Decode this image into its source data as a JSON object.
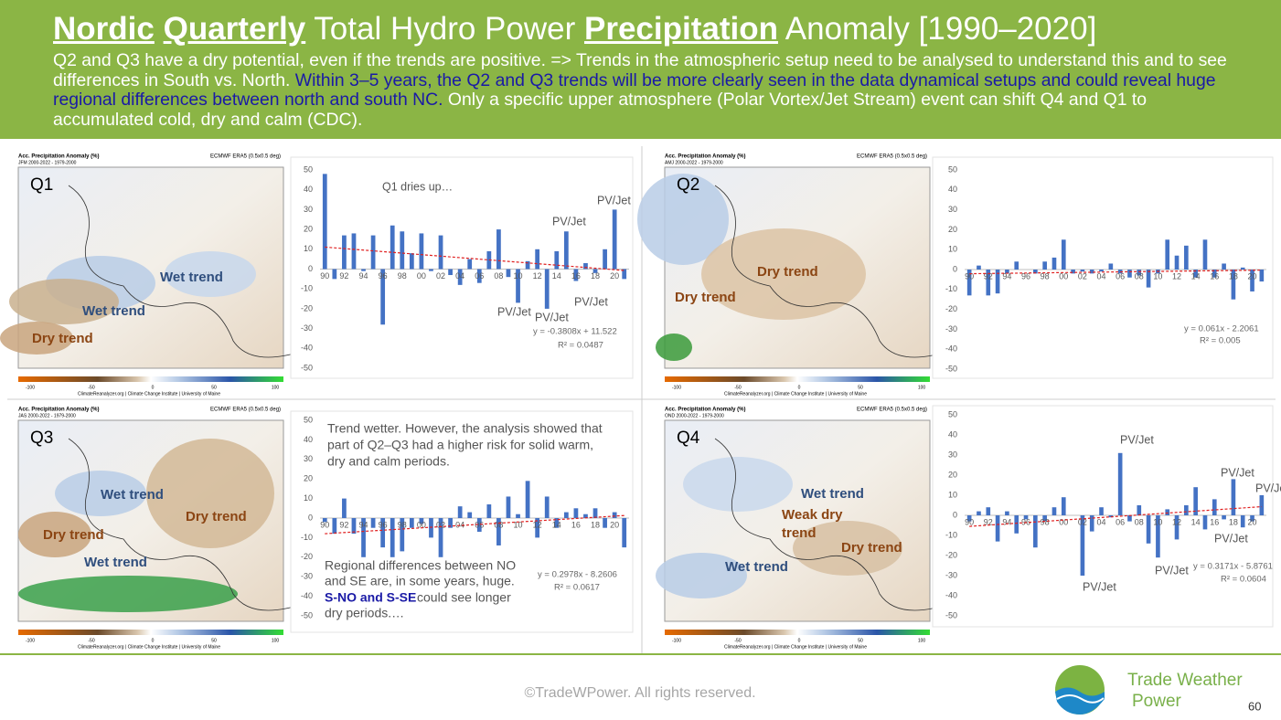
{
  "header": {
    "title_parts": [
      {
        "text": "Nordic",
        "underline": true
      },
      {
        "text": " ",
        "underline": false
      },
      {
        "text": "Quarterly",
        "underline": true
      },
      {
        "text": " Total Hydro Power ",
        "underline": false
      },
      {
        "text": "Precipitation",
        "underline": true
      },
      {
        "text": " Anomaly [1990–2020]",
        "underline": false
      }
    ],
    "subtitle_parts": [
      {
        "text": "Q2 and Q3 have a dry potential, even if the trends are positive. => Trends in the atmospheric setup need to be analysed to understand this and to see differences in South vs. North. ",
        "color": "#ffffff"
      },
      {
        "text": "Within 3–5 years, the Q2 and Q3 trends will be more clearly seen in the data dynamical setups and could reveal huge regional differences between north and south NC.",
        "color": "#1a1aa6"
      },
      {
        "text": "  Only a specific upper atmosphere (Polar Vortex/Jet Stream) event can shift Q4 and Q1 to accumulated cold, dry and calm (CDC).",
        "color": "#ffffff"
      }
    ]
  },
  "maps": {
    "title": "Acc. Precipitation Anomaly (%)",
    "model": "ECMWF ERA5 (0.5x0.5 deg)",
    "source": "ClimateReanalyzer.org | Climate Change Institute | University of Maine",
    "colorbar_ticks": [
      "-100",
      "-50",
      "0",
      "50",
      "100"
    ],
    "panels": [
      {
        "period": "JFM 2000-2022 - 1979-2000",
        "quarter": "Q1",
        "labels": [
          {
            "text": "Wet trend",
            "color": "#2f4e7d"
          },
          {
            "text": "Wet trend",
            "color": "#2f4e7d"
          },
          {
            "text": "Dry trend",
            "color": "#8b4513"
          }
        ]
      },
      {
        "period": "AMJ 2000-2022 - 1979-2000",
        "quarter": "Q2",
        "labels": [
          {
            "text": "Dry trend",
            "color": "#8b4513"
          },
          {
            "text": "Dry trend",
            "color": "#8b4513"
          }
        ]
      },
      {
        "period": "JAS 2000-2022 - 1979-2000",
        "quarter": "Q3",
        "labels": [
          {
            "text": "Wet trend",
            "color": "#2f4e7d"
          },
          {
            "text": "Dry trend",
            "color": "#8b4513"
          },
          {
            "text": "Dry trend",
            "color": "#8b4513"
          },
          {
            "text": "Wet trend",
            "color": "#2f4e7d"
          }
        ]
      },
      {
        "period": "OND 2000-2022 - 1979-2000",
        "quarter": "Q4",
        "labels": [
          {
            "text": "Wet trend",
            "color": "#2f4e7d"
          },
          {
            "text": "Weak dry",
            "color": "#8b4513"
          },
          {
            "text": "trend",
            "color": "#8b4513"
          },
          {
            "text": "Dry trend",
            "color": "#8b4513"
          },
          {
            "text": "Wet trend",
            "color": "#2f4e7d"
          }
        ]
      }
    ]
  },
  "chart_data": [
    {
      "type": "bar",
      "color": "#4472c4",
      "trend_color": "#e02020",
      "categories": [
        "90",
        null,
        "92",
        null,
        "94",
        null,
        "96",
        null,
        "98",
        null,
        "00",
        null,
        "02",
        null,
        "04",
        null,
        "06",
        null,
        "08",
        null,
        "10",
        null,
        "12",
        null,
        "14",
        null,
        "16",
        null,
        "18",
        null,
        "20",
        null
      ],
      "values": [
        48,
        -5,
        17,
        18,
        -1,
        17,
        -28,
        22,
        19,
        8,
        18,
        -1,
        17,
        -3,
        -8,
        5,
        -7,
        9,
        20,
        -4,
        -17,
        4,
        10,
        -20,
        9,
        19,
        -6,
        3,
        -2,
        10,
        30,
        -5
      ],
      "trend": [
        11.1,
        -0.7
      ],
      "ylim": [
        -50,
        50
      ],
      "yticks": [
        -50,
        -40,
        -30,
        -20,
        -10,
        0,
        10,
        20,
        30,
        40,
        50
      ],
      "annotations": [
        "Q1 dries up…",
        "PV/Jet",
        "PV/Jet",
        "PV/Jet",
        "PV/Jet",
        "PV/Jet",
        "y = -0.3808x + 11.522",
        "R² = 0.0487"
      ]
    },
    {
      "type": "bar",
      "color": "#4472c4",
      "trend_color": "#e02020",
      "categories": [
        "90",
        null,
        "92",
        null,
        "94",
        null,
        "96",
        null,
        "98",
        null,
        "00",
        null,
        "02",
        null,
        "04",
        null,
        "06",
        null,
        "08",
        null,
        "10",
        null,
        "12",
        null,
        "14",
        null,
        "16",
        null,
        "18",
        null,
        "20",
        null
      ],
      "values": [
        -13,
        2,
        -13,
        -12,
        -2,
        4,
        0,
        -2,
        4,
        6,
        15,
        -2,
        -1,
        -2,
        -1,
        3,
        -2,
        -4,
        -3,
        -9,
        -2,
        15,
        7,
        12,
        -4,
        15,
        -4,
        3,
        -15,
        1,
        -11,
        -6
      ],
      "trend": [
        -2.1,
        -0.3
      ],
      "ylim": [
        -50,
        50
      ],
      "yticks": [
        -50,
        -40,
        -30,
        -20,
        -10,
        0,
        10,
        20,
        30,
        40,
        50
      ],
      "annotations": [
        "y = 0.061x - 2.2061",
        "R² = 0.005"
      ]
    },
    {
      "type": "bar",
      "color": "#4472c4",
      "trend_color": "#e02020",
      "categories": [
        "90",
        null,
        "92",
        null,
        "94",
        null,
        "96",
        null,
        "98",
        null,
        "00",
        null,
        "02",
        null,
        "04",
        null,
        "06",
        null,
        "08",
        null,
        "10",
        null,
        "12",
        null,
        "14",
        null,
        "16",
        null,
        "18",
        null,
        "20",
        null
      ],
      "values": [
        -2,
        -8,
        10,
        -8,
        -20,
        -5,
        -15,
        -20,
        -17,
        -5,
        -3,
        -10,
        -20,
        -5,
        6,
        3,
        -7,
        7,
        -14,
        11,
        2,
        19,
        -10,
        11,
        -5,
        3,
        5,
        2,
        5,
        -5,
        3,
        -15
      ],
      "trend": [
        -8,
        1.3
      ],
      "ylim": [
        -50,
        50
      ],
      "yticks": [
        -50,
        -40,
        -30,
        -20,
        -10,
        0,
        10,
        20,
        30,
        40,
        50
      ],
      "annotations": [
        "Trend wetter. However, the analysis showed that",
        "part of Q2–Q3 had a higher risk for solid warm,",
        "dry and calm periods.",
        "Regional differences between NO",
        "and SE are, in some years, huge.",
        "S-NO and S-SE",
        "could see longer",
        "dry periods.…",
        "y = 0.2978x - 8.2606",
        "R² = 0.0617"
      ]
    },
    {
      "type": "bar",
      "color": "#4472c4",
      "trend_color": "#e02020",
      "categories": [
        "90",
        null,
        "92",
        null,
        "94",
        null,
        "96",
        null,
        "98",
        null,
        "00",
        null,
        "02",
        null,
        "04",
        null,
        "06",
        null,
        "08",
        null,
        "10",
        null,
        "12",
        null,
        "14",
        null,
        "16",
        null,
        "18",
        null,
        "20",
        null
      ],
      "values": [
        -3,
        2,
        4,
        -13,
        2,
        -9,
        -2,
        -16,
        -3,
        4,
        9,
        0,
        -30,
        -8,
        4,
        -1,
        31,
        -3,
        5,
        -14,
        -21,
        3,
        -12,
        5,
        14,
        -7,
        8,
        -2,
        18,
        -6,
        -3,
        10
      ],
      "trend": [
        -5.5,
        4.3
      ],
      "ylim": [
        -50,
        50
      ],
      "yticks": [
        -50,
        -40,
        -30,
        -20,
        -10,
        0,
        10,
        20,
        30,
        40,
        50
      ],
      "annotations": [
        "PV/Jet",
        "PV/Jet",
        "PV/Jet",
        "PV/Jet",
        "PV/Jet",
        "PV/Jet",
        "y = 0.3171x - 5.8761",
        "R² = 0.0604"
      ]
    }
  ],
  "footer": {
    "copyright": "©TradeWPower. All rights reserved.",
    "brand_line1": "Trade Weather",
    "brand_line2": "Power",
    "page": "60"
  }
}
